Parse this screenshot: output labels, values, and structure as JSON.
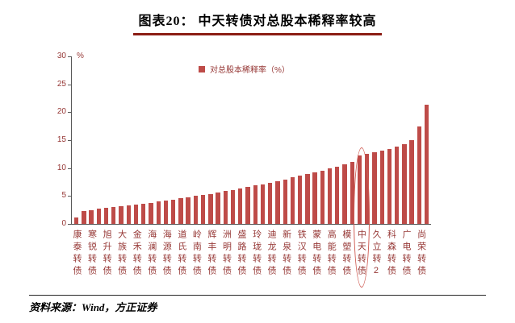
{
  "page": {
    "title": "图表20： 中天转债对总股本稀释率较高",
    "source": "资料来源：Wind，方正证券"
  },
  "chart_data": {
    "type": "bar",
    "title": "图表20： 中天转债对总股本稀释率较高",
    "legend": [
      {
        "label": "对总股本稀释率（%）",
        "color": "#be4b48"
      }
    ],
    "legend_position": "top-inside",
    "ylabel": "%",
    "ylim": [
      0,
      30
    ],
    "yticks": [
      0,
      5,
      10,
      15,
      20,
      25,
      30
    ],
    "grid": false,
    "bar_color": "#be4b48",
    "axis_color": "#595959",
    "text_color": "#963735",
    "highlight": {
      "label": "中天转债",
      "shape": "ellipse",
      "color": "#cf5b52"
    },
    "categories": [
      "康泰转债",
      "寒锐转债",
      "旭升转债",
      "大族转债",
      "金禾转债",
      "海澜转债",
      "海源转债",
      "道氏转债",
      "岭南转债",
      "辉丰转债",
      "洲明转债",
      "盛路转债",
      "玲珑转债",
      "迪龙转债",
      "新泉转债",
      "铁汉转债",
      "蒙电转债",
      "高能转债",
      "模塑转债",
      "中天转债",
      "久立转2",
      "科森转债",
      "广电转债",
      "尚荣转债"
    ],
    "bars": [
      {
        "label": "康泰转债",
        "value": 1.2
      },
      {
        "label": "",
        "value": 2.3
      },
      {
        "label": "寒锐转债",
        "value": 2.5
      },
      {
        "label": "",
        "value": 2.7
      },
      {
        "label": "旭升转债",
        "value": 2.9
      },
      {
        "label": "",
        "value": 3.0
      },
      {
        "label": "大族转债",
        "value": 3.2
      },
      {
        "label": "",
        "value": 3.3
      },
      {
        "label": "金禾转债",
        "value": 3.5
      },
      {
        "label": "",
        "value": 3.6
      },
      {
        "label": "海澜转债",
        "value": 3.8
      },
      {
        "label": "",
        "value": 4.0
      },
      {
        "label": "海源转债",
        "value": 4.2
      },
      {
        "label": "",
        "value": 4.4
      },
      {
        "label": "道氏转债",
        "value": 4.6
      },
      {
        "label": "",
        "value": 4.8
      },
      {
        "label": "岭南转债",
        "value": 5.0
      },
      {
        "label": "",
        "value": 5.2
      },
      {
        "label": "辉丰转债",
        "value": 5.4
      },
      {
        "label": "",
        "value": 5.6
      },
      {
        "label": "洲明转债",
        "value": 5.9
      },
      {
        "label": "",
        "value": 6.1
      },
      {
        "label": "盛路转债",
        "value": 6.4
      },
      {
        "label": "",
        "value": 6.6
      },
      {
        "label": "玲珑转债",
        "value": 6.9
      },
      {
        "label": "",
        "value": 7.1
      },
      {
        "label": "迪龙转债",
        "value": 7.4
      },
      {
        "label": "",
        "value": 7.7
      },
      {
        "label": "新泉转债",
        "value": 8.0
      },
      {
        "label": "",
        "value": 8.3
      },
      {
        "label": "铁汉转债",
        "value": 8.6
      },
      {
        "label": "",
        "value": 8.9
      },
      {
        "label": "蒙电转债",
        "value": 9.2
      },
      {
        "label": "",
        "value": 9.5
      },
      {
        "label": "高能转债",
        "value": 9.9
      },
      {
        "label": "",
        "value": 10.3
      },
      {
        "label": "模塑转债",
        "value": 10.7
      },
      {
        "label": "",
        "value": 11.1
      },
      {
        "label": "中天转债",
        "value": 12.3
      },
      {
        "label": "",
        "value": 12.5
      },
      {
        "label": "久立转2",
        "value": 12.8
      },
      {
        "label": "",
        "value": 13.1
      },
      {
        "label": "科森转债",
        "value": 13.4
      },
      {
        "label": "",
        "value": 13.8
      },
      {
        "label": "广电转债",
        "value": 14.3
      },
      {
        "label": "",
        "value": 15.0
      },
      {
        "label": "尚荣转债",
        "value": 17.4
      },
      {
        "label": "",
        "value": 21.3
      }
    ]
  }
}
